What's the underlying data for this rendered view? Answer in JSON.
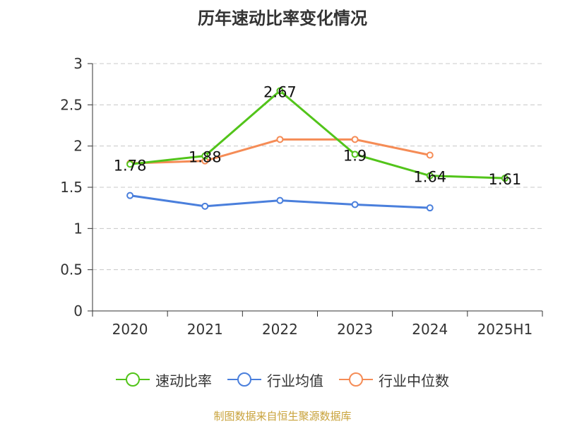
{
  "chart_data": {
    "type": "line",
    "title": "历年速动比率变化情况",
    "categories": [
      "2020",
      "2021",
      "2022",
      "2023",
      "2024",
      "2025H1"
    ],
    "ylim": [
      0,
      3
    ],
    "yticks": [
      "0",
      "0.5",
      "1",
      "1.5",
      "2",
      "2.5",
      "3"
    ],
    "grid": true,
    "legend_position": "bottom",
    "series": [
      {
        "name": "速动比率",
        "color": "#52c41a",
        "values": [
          1.78,
          1.88,
          2.67,
          1.9,
          1.64,
          1.61
        ],
        "labels": [
          "1.78",
          "1.88",
          "2.67",
          "1.9",
          "1.64",
          "1.61"
        ]
      },
      {
        "name": "行业均值",
        "color": "#4a7fdc",
        "values": [
          1.4,
          1.27,
          1.34,
          1.29,
          1.25,
          null
        ]
      },
      {
        "name": "行业中位数",
        "color": "#f58c56",
        "values": [
          1.79,
          1.82,
          2.08,
          2.08,
          1.89,
          null
        ]
      }
    ]
  },
  "source_text": "制图数据来自恒生聚源数据库"
}
